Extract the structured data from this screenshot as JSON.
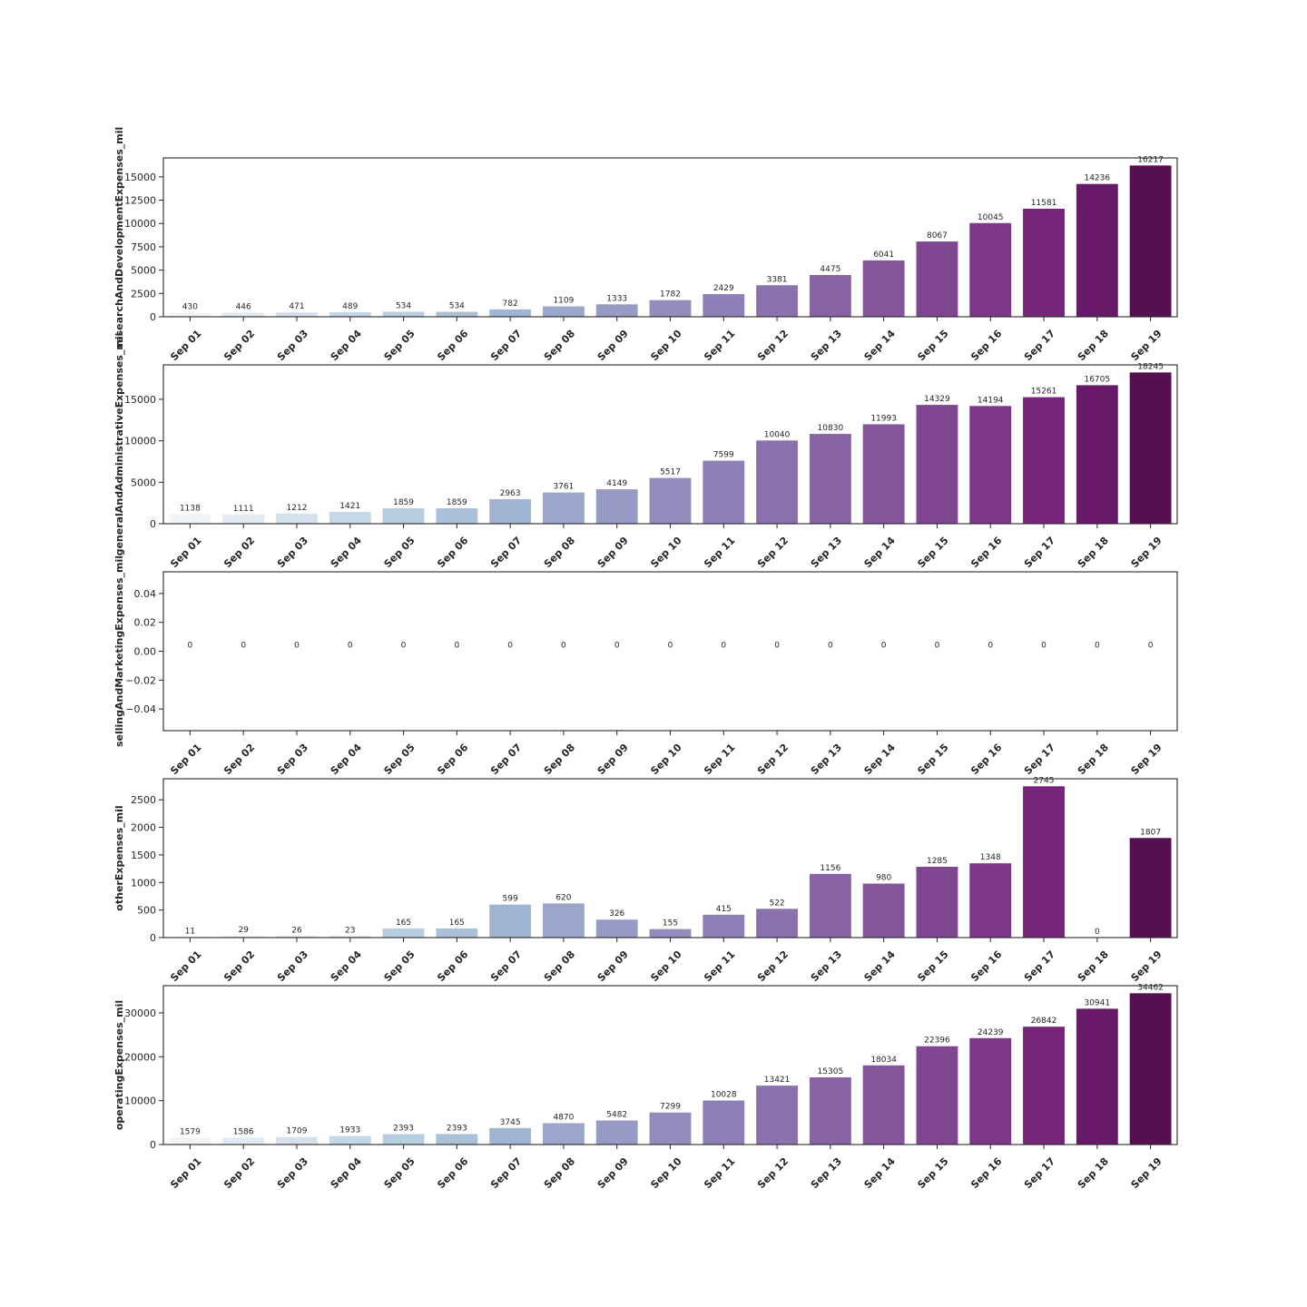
{
  "colors": [
    "#f1f5f8",
    "#e2ebf3",
    "#d4e1ec",
    "#c6d7e6",
    "#b8cde0",
    "#abc1d9",
    "#a1b4d2",
    "#9aa7cb",
    "#969ac4",
    "#928dbd",
    "#8e7fb6",
    "#8b72ae",
    "#8863a5",
    "#85559c",
    "#814692",
    "#7d3788",
    "#75257a",
    "#69196a",
    "#560f4f"
  ],
  "chart_data": [
    {
      "type": "bar",
      "ylabel": "researchAndDevelopmentExpenses_mil",
      "categories": [
        "Sep 01",
        "Sep 02",
        "Sep 03",
        "Sep 04",
        "Sep 05",
        "Sep 06",
        "Sep 07",
        "Sep 08",
        "Sep 09",
        "Sep 10",
        "Sep 11",
        "Sep 12",
        "Sep 13",
        "Sep 14",
        "Sep 15",
        "Sep 16",
        "Sep 17",
        "Sep 18",
        "Sep 19"
      ],
      "values": [
        430,
        446,
        471,
        489,
        534,
        534,
        782,
        1109,
        1333,
        1782,
        2429,
        3381,
        4475,
        6041,
        8067,
        10045,
        11581,
        14236,
        16217
      ],
      "yticks": [
        0,
        2500,
        5000,
        7500,
        10000,
        12500,
        15000
      ],
      "ylim": [
        0,
        17028
      ]
    },
    {
      "type": "bar",
      "ylabel": "generalAndAdministrativeExpenses_mil",
      "categories": [
        "Sep 01",
        "Sep 02",
        "Sep 03",
        "Sep 04",
        "Sep 05",
        "Sep 06",
        "Sep 07",
        "Sep 08",
        "Sep 09",
        "Sep 10",
        "Sep 11",
        "Sep 12",
        "Sep 13",
        "Sep 14",
        "Sep 15",
        "Sep 16",
        "Sep 17",
        "Sep 18",
        "Sep 19"
      ],
      "values": [
        1138,
        1111,
        1212,
        1421,
        1859,
        1859,
        2963,
        3761,
        4149,
        5517,
        7599,
        10040,
        10830,
        11993,
        14329,
        14194,
        15261,
        16705,
        18245
      ],
      "yticks": [
        0,
        5000,
        10000,
        15000
      ],
      "ylim": [
        0,
        19157
      ]
    },
    {
      "type": "bar",
      "ylabel": "sellingAndMarketingExpenses_mil",
      "categories": [
        "Sep 01",
        "Sep 02",
        "Sep 03",
        "Sep 04",
        "Sep 05",
        "Sep 06",
        "Sep 07",
        "Sep 08",
        "Sep 09",
        "Sep 10",
        "Sep 11",
        "Sep 12",
        "Sep 13",
        "Sep 14",
        "Sep 15",
        "Sep 16",
        "Sep 17",
        "Sep 18",
        "Sep 19"
      ],
      "values": [
        0,
        0,
        0,
        0,
        0,
        0,
        0,
        0,
        0,
        0,
        0,
        0,
        0,
        0,
        0,
        0,
        0,
        0,
        0
      ],
      "yticks": [
        -0.04,
        -0.02,
        0.0,
        0.02,
        0.04
      ],
      "ytick_labels": [
        "−0.04",
        "−0.02",
        "0.00",
        "0.02",
        "0.04"
      ],
      "ylim": [
        -0.055,
        0.055
      ]
    },
    {
      "type": "bar",
      "ylabel": "otherExpenses_mil",
      "categories": [
        "Sep 01",
        "Sep 02",
        "Sep 03",
        "Sep 04",
        "Sep 05",
        "Sep 06",
        "Sep 07",
        "Sep 08",
        "Sep 09",
        "Sep 10",
        "Sep 11",
        "Sep 12",
        "Sep 13",
        "Sep 14",
        "Sep 15",
        "Sep 16",
        "Sep 17",
        "Sep 18",
        "Sep 19"
      ],
      "values": [
        11,
        29,
        26,
        23,
        165,
        165,
        599,
        620,
        326,
        155,
        415,
        522,
        1156,
        980,
        1285,
        1348,
        2745,
        0,
        1807
      ],
      "yticks": [
        0,
        500,
        1000,
        1500,
        2000,
        2500
      ],
      "ylim": [
        0,
        2882
      ]
    },
    {
      "type": "bar",
      "ylabel": "operatingExpenses_mil",
      "categories": [
        "Sep 01",
        "Sep 02",
        "Sep 03",
        "Sep 04",
        "Sep 05",
        "Sep 06",
        "Sep 07",
        "Sep 08",
        "Sep 09",
        "Sep 10",
        "Sep 11",
        "Sep 12",
        "Sep 13",
        "Sep 14",
        "Sep 15",
        "Sep 16",
        "Sep 17",
        "Sep 18",
        "Sep 19"
      ],
      "values": [
        1579,
        1586,
        1709,
        1933,
        2393,
        2393,
        3745,
        4870,
        5482,
        7299,
        10028,
        13421,
        15305,
        18034,
        22396,
        24239,
        26842,
        30941,
        34462
      ],
      "yticks": [
        0,
        10000,
        20000,
        30000
      ],
      "ylim": [
        0,
        36185
      ]
    }
  ]
}
